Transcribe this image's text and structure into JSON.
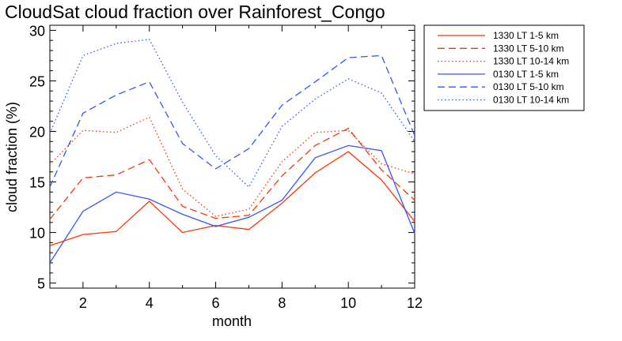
{
  "chart_data": {
    "type": "line",
    "title": "CloudSat cloud fraction over Rainforest_Congo",
    "xlabel": "month",
    "ylabel": "cloud fraction (%)",
    "xlim": [
      1,
      12
    ],
    "ylim": [
      4.5,
      30.5
    ],
    "xticks": [
      2,
      4,
      6,
      8,
      10,
      12
    ],
    "yticks": [
      5,
      10,
      15,
      20,
      25,
      30
    ],
    "legend_position": "outside-top-right",
    "x": [
      1,
      2,
      3,
      4,
      5,
      6,
      7,
      8,
      9,
      10,
      11,
      12
    ],
    "series": [
      {
        "name": "1330 LT 1-5 km",
        "color": "#ff3300",
        "dash": "solid",
        "values": [
          8.7,
          9.8,
          10.1,
          13.1,
          10.0,
          10.7,
          10.3,
          12.9,
          15.9,
          18.0,
          15.2,
          11.1
        ]
      },
      {
        "name": "1330 LT 5-10 km",
        "color": "#ff3300",
        "dash": "dashed",
        "values": [
          11.3,
          15.4,
          15.7,
          17.2,
          12.6,
          11.4,
          11.7,
          15.6,
          18.6,
          20.3,
          16.2,
          13.2
        ]
      },
      {
        "name": "1330 LT 10-14 km",
        "color": "#ff3300",
        "dash": "dotted",
        "values": [
          16.7,
          20.1,
          19.9,
          21.4,
          14.3,
          11.6,
          12.3,
          17.0,
          19.9,
          20.1,
          16.8,
          15.8
        ]
      },
      {
        "name": "0130 LT 1-5 km",
        "color": "#3355ff",
        "dash": "solid",
        "values": [
          7.0,
          12.1,
          14.0,
          13.3,
          11.8,
          10.6,
          11.5,
          13.2,
          17.4,
          18.6,
          18.1,
          9.9
        ]
      },
      {
        "name": "0130 LT 5-10 km",
        "color": "#3355ff",
        "dash": "dashed",
        "values": [
          14.5,
          21.8,
          23.6,
          24.9,
          18.8,
          16.3,
          18.3,
          22.6,
          24.9,
          27.3,
          27.5,
          19.6
        ]
      },
      {
        "name": "0130 LT 10-14 km",
        "color": "#3355ff",
        "dash": "dotted",
        "values": [
          19.8,
          27.5,
          28.7,
          29.1,
          22.9,
          17.6,
          14.5,
          20.5,
          23.2,
          25.2,
          23.8,
          19.0
        ]
      }
    ]
  }
}
